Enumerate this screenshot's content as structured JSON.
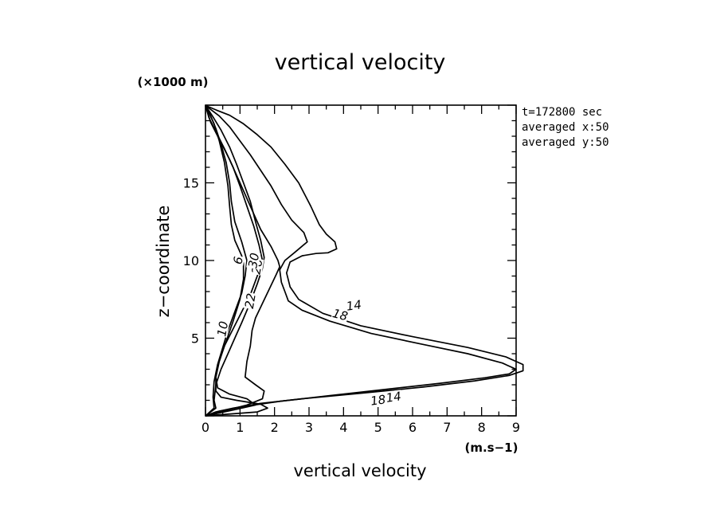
{
  "chart_data": {
    "type": "line",
    "title": "vertical velocity",
    "xlabel": "vertical velocity",
    "ylabel": "z−coordinate",
    "x_unit": "(m.s−1)",
    "y_unit": "(×1000 m)",
    "xlim": [
      0,
      9
    ],
    "ylim": [
      0,
      20
    ],
    "x_ticks": [
      0,
      1,
      2,
      3,
      4,
      5,
      6,
      7,
      8,
      9
    ],
    "y_ticks": [
      5,
      10,
      15
    ],
    "info_lines": [
      "t=172800 sec",
      "averaged  x:50",
      "averaged  y:50"
    ],
    "series": [
      {
        "name": "14",
        "x": [
          0,
          0.3,
          0.8,
          1.6,
          2.8,
          4.5,
          6.3,
          7.8,
          8.8,
          9.2,
          9.2,
          8.7,
          7.6,
          6.0,
          4.5,
          3.4,
          2.7,
          2.45,
          2.35,
          2.45,
          2.8,
          3.2,
          3.55,
          3.8,
          3.75,
          3.5,
          3.3,
          3.05,
          2.7,
          2.3,
          1.9,
          1.5,
          1.1,
          0.7,
          0.3,
          0
        ],
        "y": [
          0,
          0.25,
          0.5,
          0.8,
          1.1,
          1.45,
          1.85,
          2.25,
          2.6,
          2.9,
          3.3,
          3.8,
          4.4,
          5.1,
          5.8,
          6.6,
          7.5,
          8.3,
          9.2,
          9.9,
          10.3,
          10.45,
          10.5,
          10.75,
          11.2,
          11.7,
          12.3,
          13.5,
          15.0,
          16.2,
          17.3,
          18.1,
          18.8,
          19.35,
          19.7,
          19.98
        ]
      },
      {
        "name": "18",
        "x": [
          0,
          0.4,
          1.1,
          2.2,
          3.6,
          5.2,
          6.8,
          8.1,
          8.8,
          9.0,
          8.6,
          7.6,
          6.3,
          4.8,
          3.6,
          2.8,
          2.4,
          2.3,
          2.2,
          2.15,
          2.3,
          2.6,
          2.95,
          2.85,
          2.5,
          2.2,
          1.9,
          1.6,
          1.3,
          1.0,
          0.7,
          0.4,
          0
        ],
        "y": [
          0,
          0.3,
          0.6,
          0.95,
          1.3,
          1.7,
          2.1,
          2.45,
          2.7,
          3.0,
          3.4,
          4.0,
          4.6,
          5.3,
          6.1,
          6.8,
          7.4,
          8.0,
          8.6,
          9.4,
          10.0,
          10.55,
          11.2,
          11.8,
          12.6,
          13.6,
          14.8,
          15.8,
          16.8,
          17.7,
          18.6,
          19.3,
          19.98
        ]
      },
      {
        "name": "22",
        "x": [
          0,
          0.6,
          1.2,
          1.65,
          1.7,
          1.45,
          1.15,
          1.2,
          1.3,
          1.35,
          1.45,
          1.6,
          1.75,
          1.9,
          2.05,
          2.15,
          2.1,
          1.9,
          1.6,
          1.3,
          1.0,
          0.7,
          0.4,
          0.15,
          0
        ],
        "y": [
          0,
          0.35,
          0.7,
          1.1,
          1.6,
          2.0,
          2.5,
          3.5,
          4.5,
          5.5,
          6.3,
          7.0,
          7.7,
          8.4,
          9.1,
          9.6,
          10.0,
          10.9,
          12.0,
          13.5,
          15.0,
          16.5,
          17.8,
          18.9,
          19.98
        ]
      },
      {
        "name": "26",
        "x": [
          0,
          0.3,
          0.25,
          0.3,
          0.45,
          0.65,
          0.85,
          1.05,
          1.3,
          1.5,
          1.65,
          1.7,
          1.6,
          1.45,
          1.3,
          1.1,
          0.9,
          0.7,
          0.45,
          0.2,
          0
        ],
        "y": [
          0,
          0.5,
          1.0,
          2.0,
          3.0,
          4.0,
          5.0,
          6.0,
          7.3,
          8.5,
          9.5,
          10.2,
          11.3,
          12.5,
          13.8,
          15.0,
          16.2,
          17.3,
          18.4,
          19.3,
          19.98
        ]
      },
      {
        "name": "30",
        "x": [
          0,
          0.75,
          1.45,
          1.2,
          0.7,
          0.35,
          0.3,
          0.4,
          0.55,
          0.8,
          1.05,
          1.3,
          1.45,
          1.55,
          1.6,
          1.65,
          1.55,
          1.4,
          1.2,
          1.0,
          0.8,
          0.55,
          0.3,
          0.1,
          0
        ],
        "y": [
          0,
          0.35,
          0.7,
          1.1,
          1.4,
          1.8,
          2.5,
          3.5,
          4.5,
          5.6,
          6.7,
          7.8,
          8.7,
          9.3,
          9.7,
          10.0,
          11.0,
          12.2,
          13.5,
          14.8,
          16.0,
          17.2,
          18.3,
          19.2,
          19.98
        ]
      },
      {
        "name": "6",
        "x": [
          0,
          1.5,
          1.8,
          1.6,
          0.9,
          0.45,
          0.3,
          0.3,
          0.4,
          0.6,
          0.8,
          1.0,
          1.1,
          1.1,
          1.05,
          0.85,
          0.75,
          0.7,
          0.65,
          0.55,
          0.4,
          0.25,
          0
        ],
        "y": [
          0,
          0.25,
          0.5,
          0.75,
          1.0,
          1.2,
          1.6,
          2.5,
          3.6,
          4.8,
          6.1,
          7.5,
          8.8,
          9.8,
          10.3,
          11.3,
          12.3,
          13.5,
          14.8,
          16.3,
          17.7,
          18.8,
          19.98
        ]
      },
      {
        "name": "10",
        "x": [
          0,
          0.25,
          0.22,
          0.25,
          0.35,
          0.5,
          0.65,
          0.85,
          1.05,
          1.15,
          1.2,
          1.05,
          0.85,
          0.75,
          0.7,
          0.6,
          0.45,
          0.3,
          0.15,
          0
        ],
        "y": [
          0,
          0.5,
          1.2,
          2.2,
          3.3,
          4.4,
          5.5,
          6.7,
          7.9,
          9.0,
          10.0,
          11.2,
          12.5,
          13.8,
          15.0,
          16.3,
          17.5,
          18.5,
          19.3,
          19.98
        ]
      }
    ],
    "contour_labels": [
      {
        "text": "14",
        "x": 4.3,
        "y": 7.1,
        "rot": -8
      },
      {
        "text": "18",
        "x": 3.9,
        "y": 6.5,
        "rot": 15
      },
      {
        "text": "14",
        "x": 5.45,
        "y": 1.2,
        "rot": -8
      },
      {
        "text": "18",
        "x": 5.0,
        "y": 1.0,
        "rot": -8
      },
      {
        "text": "22",
        "x": 1.3,
        "y": 7.4,
        "rot": -80
      },
      {
        "text": "26",
        "x": 1.5,
        "y": 9.6,
        "rot": -80
      },
      {
        "text": "30",
        "x": 1.4,
        "y": 10.0,
        "rot": -80
      },
      {
        "text": "6",
        "x": 0.95,
        "y": 10.0,
        "rot": -80
      },
      {
        "text": "10",
        "x": 0.5,
        "y": 5.6,
        "rot": -80
      }
    ]
  }
}
